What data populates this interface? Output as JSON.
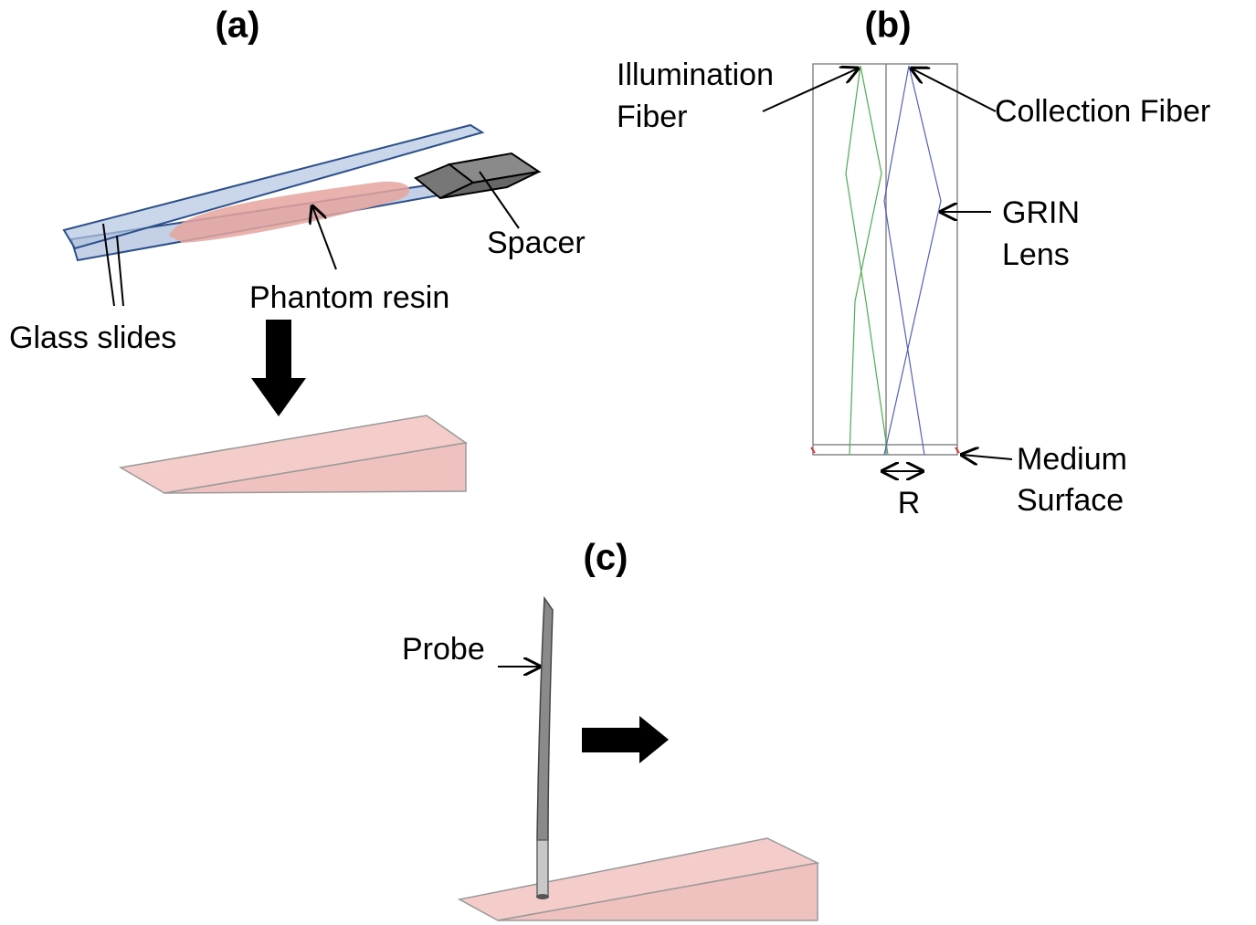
{
  "panel_a": {
    "label": "(a)",
    "glass_slides": "Glass slides",
    "phantom_resin": "Phantom resin",
    "spacer": "Spacer"
  },
  "panel_b": {
    "label": "(b)",
    "illumination_fiber": [
      "Illumination",
      "Fiber"
    ],
    "collection_fiber": "Collection Fiber",
    "grin_lens": [
      "GRIN",
      "Lens"
    ],
    "medium_surface": [
      "Medium",
      "Surface"
    ],
    "r": "R"
  },
  "panel_c": {
    "label": "(c)",
    "probe": "Probe"
  }
}
